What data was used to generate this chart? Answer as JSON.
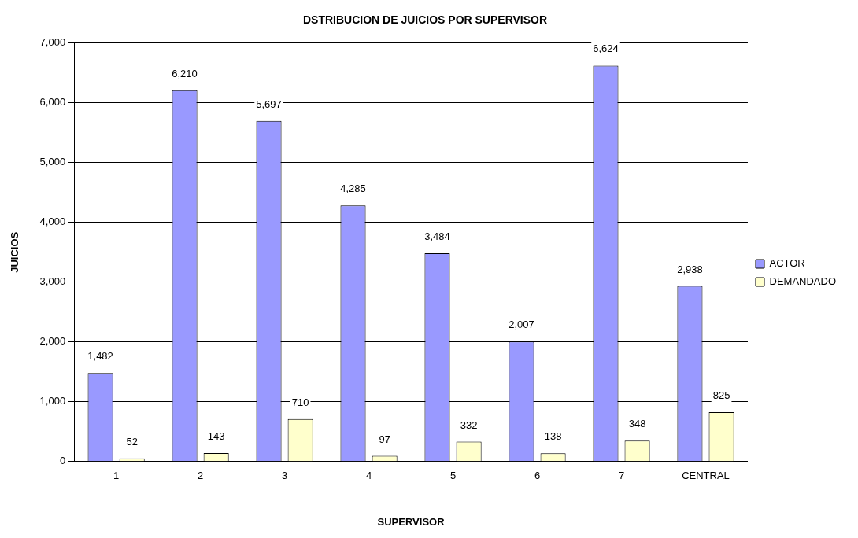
{
  "chart_data": {
    "type": "bar",
    "title": "DSTRIBUCION DE JUICIOS POR SUPERVISOR",
    "xlabel": "SUPERVISOR",
    "ylabel": "JUICIOS",
    "categories": [
      "1",
      "2",
      "3",
      "4",
      "5",
      "6",
      "7",
      "CENTRAL"
    ],
    "series": [
      {
        "name": "ACTOR",
        "color": "#9999ff",
        "values": [
          1482,
          6210,
          5697,
          4285,
          3484,
          2007,
          6624,
          2938
        ],
        "value_labels": [
          "1,482",
          "6,210",
          "5,697",
          "4,285",
          "3,484",
          "2,007",
          "6,624",
          "2,938"
        ]
      },
      {
        "name": "DEMANDADO",
        "color": "#ffffcc",
        "values": [
          52,
          143,
          710,
          97,
          332,
          138,
          348,
          825
        ],
        "value_labels": [
          "52",
          "143",
          "710",
          "97",
          "332",
          "138",
          "348",
          "825"
        ]
      }
    ],
    "ylim": [
      0,
      7000
    ],
    "yticks": [
      {
        "value": 0,
        "label": "0"
      },
      {
        "value": 1000,
        "label": "1,000"
      },
      {
        "value": 2000,
        "label": "2,000"
      },
      {
        "value": 3000,
        "label": "3,000"
      },
      {
        "value": 4000,
        "label": "4,000"
      },
      {
        "value": 5000,
        "label": "5,000"
      },
      {
        "value": 6000,
        "label": "6,000"
      },
      {
        "value": 7000,
        "label": "7,000"
      }
    ],
    "grid": "y",
    "legend": "right"
  }
}
